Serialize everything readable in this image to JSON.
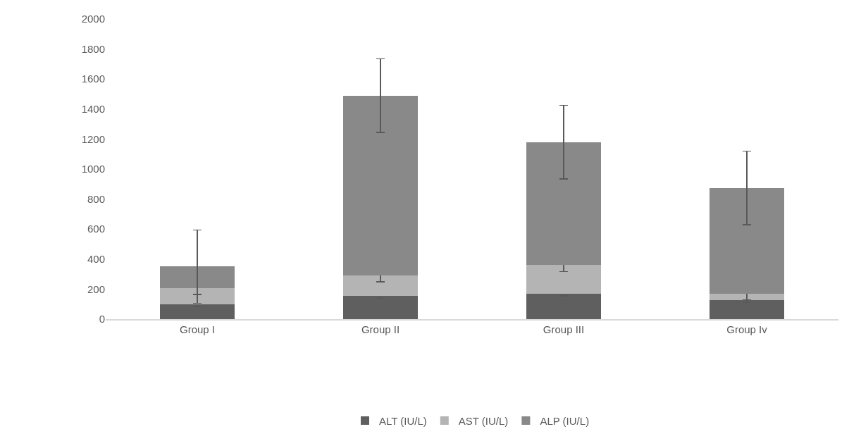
{
  "chart_data": {
    "type": "bar",
    "stacked": true,
    "categories": [
      "Group I",
      "Group II",
      "Group III",
      "Group Iv"
    ],
    "series": [
      {
        "name": "ALT (IU/L)",
        "color": "#5f5f5f",
        "values": [
          100,
          155,
          170,
          125
        ],
        "errors": [
          15,
          17,
          16,
          15
        ]
      },
      {
        "name": "AST (IU/L)",
        "color": "#b4b4b4",
        "values": [
          105,
          135,
          190,
          45
        ],
        "errors": [
          40,
          42,
          42,
          40
        ]
      },
      {
        "name": "ALP (IU/L)",
        "color": "#898989",
        "values": [
          145,
          1200,
          820,
          705
        ],
        "errors": [
          245,
          245,
          245,
          245
        ]
      }
    ],
    "ylim": [
      0,
      2000
    ],
    "yticks": [
      0,
      200,
      400,
      600,
      800,
      1000,
      1200,
      1400,
      1600,
      1800,
      2000
    ],
    "grid": false,
    "legend": "bottom"
  }
}
